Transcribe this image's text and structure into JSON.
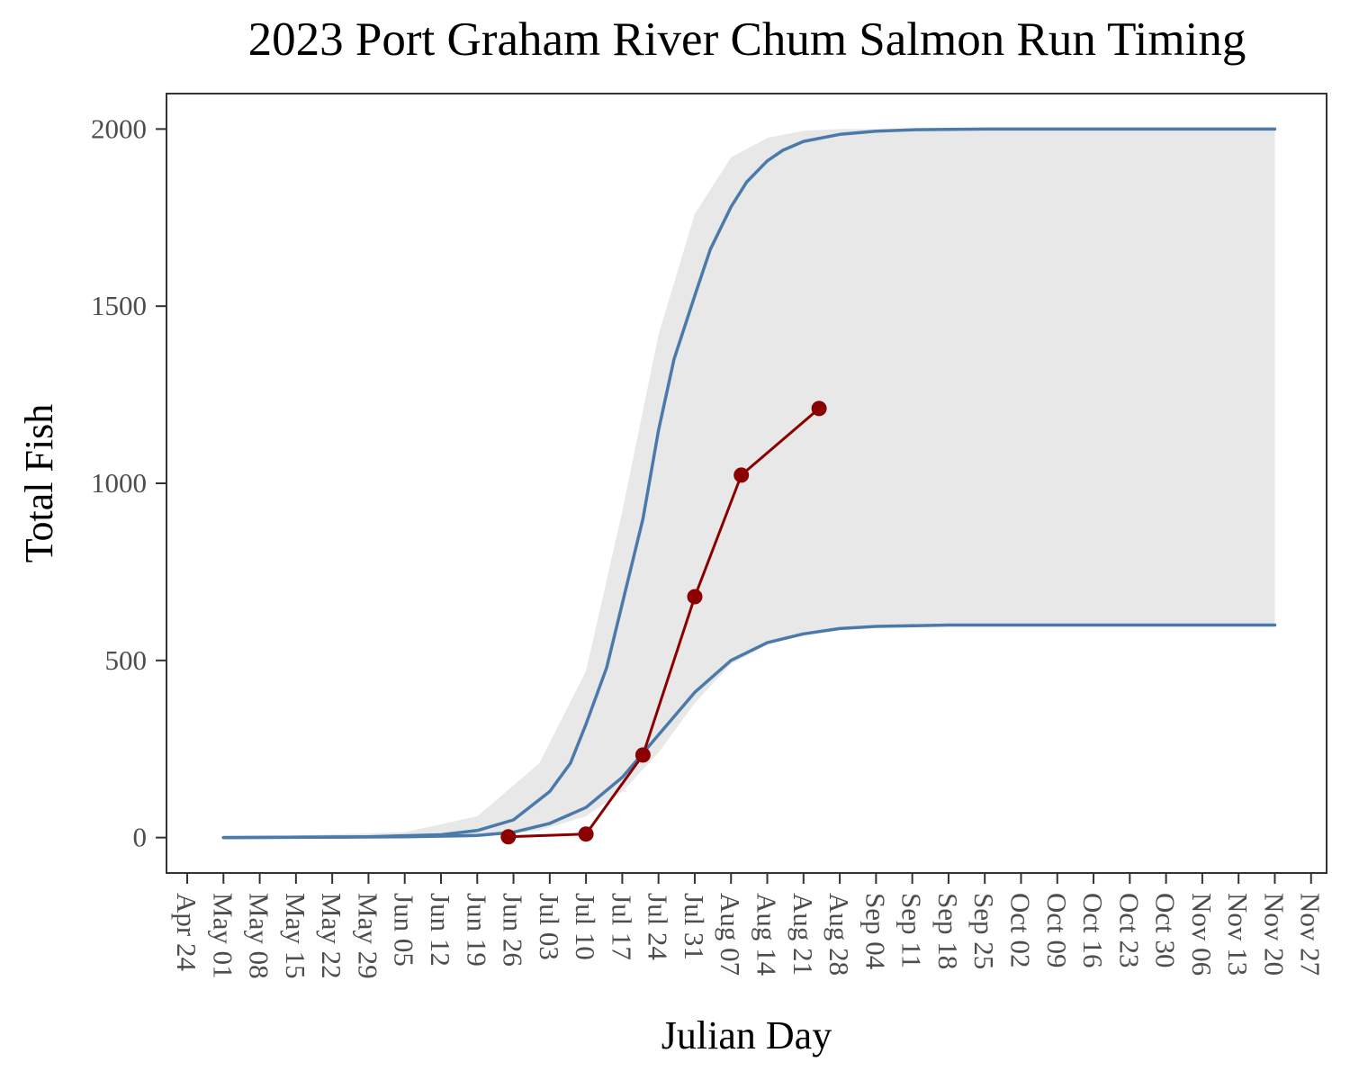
{
  "chart_data": {
    "type": "line",
    "title": "2023 Port Graham River Chum Salmon Run Timing",
    "xlabel": "Julian Day",
    "ylabel": "Total Fish",
    "xlim": [
      "Apr 20",
      "Nov 30"
    ],
    "ylim": [
      -100,
      2100
    ],
    "y_ticks": [
      0,
      500,
      1000,
      1500,
      2000
    ],
    "x_ticks": [
      "Apr 24",
      "May 01",
      "May 08",
      "May 15",
      "May 22",
      "May 29",
      "Jun 05",
      "Jun 12",
      "Jun 19",
      "Jun 26",
      "Jul 03",
      "Jul 10",
      "Jul 17",
      "Jul 24",
      "Jul 31",
      "Aug 07",
      "Aug 14",
      "Aug 21",
      "Aug 28",
      "Sep 04",
      "Sep 11",
      "Sep 18",
      "Sep 25",
      "Oct 02",
      "Oct 09",
      "Oct 16",
      "Oct 23",
      "Oct 30",
      "Nov 06",
      "Nov 13",
      "Nov 20",
      "Nov 27"
    ],
    "grid": false,
    "colors": {
      "band": "#e8e8e8",
      "historical": "#4a7aaa",
      "observed": "#8b0000"
    },
    "band": {
      "x": [
        "May 01",
        "Jun 05",
        "Jun 19",
        "Jul 01",
        "Jul 10",
        "Jul 17",
        "Jul 24",
        "Jul 31",
        "Aug 07",
        "Aug 14",
        "Aug 21",
        "Aug 28",
        "Sep 04",
        "Sep 18",
        "Nov 20"
      ],
      "upper": [
        0,
        15,
        60,
        210,
        470,
        920,
        1420,
        1760,
        1920,
        1975,
        1995,
        2000,
        2000,
        2000,
        2000
      ],
      "lower": [
        0,
        2,
        5,
        20,
        60,
        130,
        240,
        380,
        490,
        545,
        575,
        592,
        597,
        600,
        600
      ]
    },
    "series": [
      {
        "x": [
          "May 01",
          "May 29",
          "Jun 12",
          "Jun 19",
          "Jun 26",
          "Jul 03",
          "Jul 07",
          "Jul 10",
          "Jul 14",
          "Jul 17",
          "Jul 21",
          "Jul 24",
          "Jul 27",
          "Jul 31",
          "Aug 03",
          "Aug 07",
          "Aug 10",
          "Aug 14",
          "Aug 17",
          "Aug 21",
          "Aug 28",
          "Sep 04",
          "Sep 11",
          "Sep 25",
          "Nov 20"
        ],
        "values": [
          0,
          2,
          8,
          20,
          50,
          130,
          210,
          320,
          480,
          660,
          900,
          1150,
          1350,
          1530,
          1660,
          1780,
          1850,
          1910,
          1940,
          1965,
          1985,
          1994,
          1998,
          2000,
          2000
        ]
      },
      {
        "x": [
          "May 01",
          "Jun 05",
          "Jun 19",
          "Jun 26",
          "Jul 03",
          "Jul 10",
          "Jul 17",
          "Jul 24",
          "Jul 31",
          "Aug 07",
          "Aug 14",
          "Aug 21",
          "Aug 28",
          "Sep 04",
          "Sep 18",
          "Nov 20"
        ],
        "values": [
          0,
          2,
          6,
          15,
          40,
          85,
          170,
          290,
          410,
          500,
          550,
          575,
          590,
          596,
          600,
          600
        ]
      },
      {
        "x": [
          "Jun 25",
          "Jul 10",
          "Jul 21",
          "Jul 31",
          "Aug 09",
          "Aug 24"
        ],
        "values": [
          2,
          10,
          233,
          680,
          1023,
          1211
        ]
      }
    ]
  }
}
